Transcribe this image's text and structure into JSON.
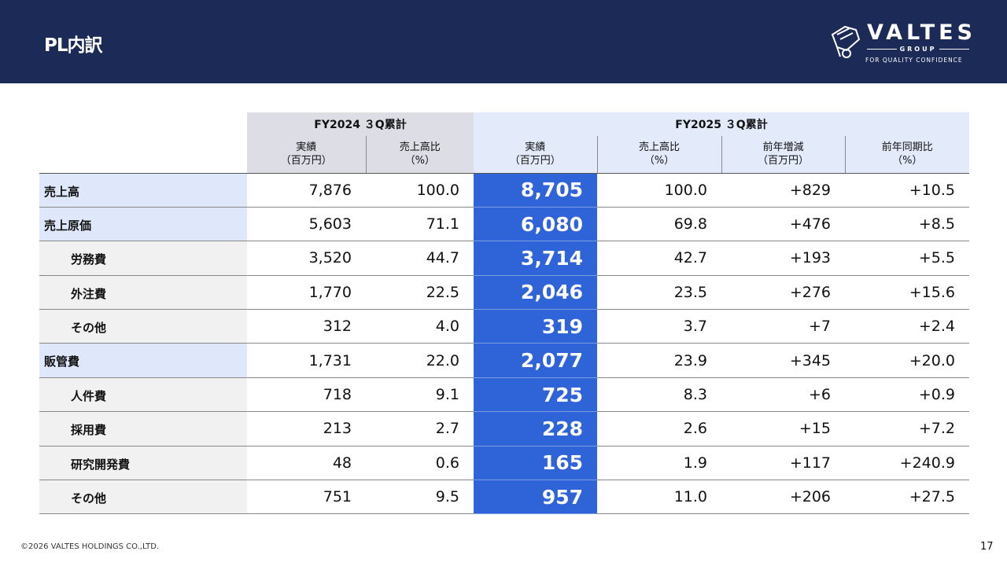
{
  "header": {
    "title": "PL内訳",
    "logo": {
      "name": "VALTES",
      "group": "GROUP",
      "tagline": "FOR QUALITY CONFIDENCE"
    }
  },
  "table": {
    "groups": [
      "FY2024 ３Q累計",
      "FY2025 ３Q累計"
    ],
    "columns": [
      [
        "実績",
        "（百万円）"
      ],
      [
        "売上高比",
        "（%）"
      ],
      [
        "実績",
        "（百万円）"
      ],
      [
        "売上高比",
        "（%）"
      ],
      [
        "前年増減",
        "（百万円）"
      ],
      [
        "前年同期比",
        "（%）"
      ]
    ],
    "rows": [
      {
        "label": "売上高",
        "level": "top",
        "values": [
          "7,876",
          "100.0",
          "8,705",
          "100.0",
          "+829",
          "+10.5"
        ]
      },
      {
        "label": "売上原価",
        "level": "top",
        "values": [
          "5,603",
          "71.1",
          "6,080",
          "69.8",
          "+476",
          "+8.5"
        ]
      },
      {
        "label": "労務費",
        "level": "sub",
        "values": [
          "3,520",
          "44.7",
          "3,714",
          "42.7",
          "+193",
          "+5.5"
        ]
      },
      {
        "label": "外注費",
        "level": "sub",
        "values": [
          "1,770",
          "22.5",
          "2,046",
          "23.5",
          "+276",
          "+15.6"
        ]
      },
      {
        "label": "その他",
        "level": "sub",
        "values": [
          "312",
          "4.0",
          "319",
          "3.7",
          "+7",
          "+2.4"
        ]
      },
      {
        "label": "販管費",
        "level": "top",
        "values": [
          "1,731",
          "22.0",
          "2,077",
          "23.9",
          "+345",
          "+20.0"
        ]
      },
      {
        "label": "人件費",
        "level": "sub",
        "values": [
          "718",
          "9.1",
          "725",
          "8.3",
          "+6",
          "+0.9"
        ]
      },
      {
        "label": "採用費",
        "level": "sub",
        "values": [
          "213",
          "2.7",
          "228",
          "2.6",
          "+15",
          "+7.2"
        ]
      },
      {
        "label": "研究開発費",
        "level": "sub",
        "values": [
          "48",
          "0.6",
          "165",
          "1.9",
          "+117",
          "+240.9"
        ]
      },
      {
        "label": "その他",
        "level": "sub",
        "values": [
          "751",
          "9.5",
          "957",
          "11.0",
          "+206",
          "+27.5"
        ]
      }
    ]
  },
  "footer": {
    "copyright": "©2026 VALTES HOLDINGS CO.,LTD.",
    "page": "17"
  },
  "colors": {
    "header": "#1c2a57",
    "highlight": "#2f63d8",
    "label_top": "#dfe8fb",
    "label_sub": "#f1f1f1"
  }
}
